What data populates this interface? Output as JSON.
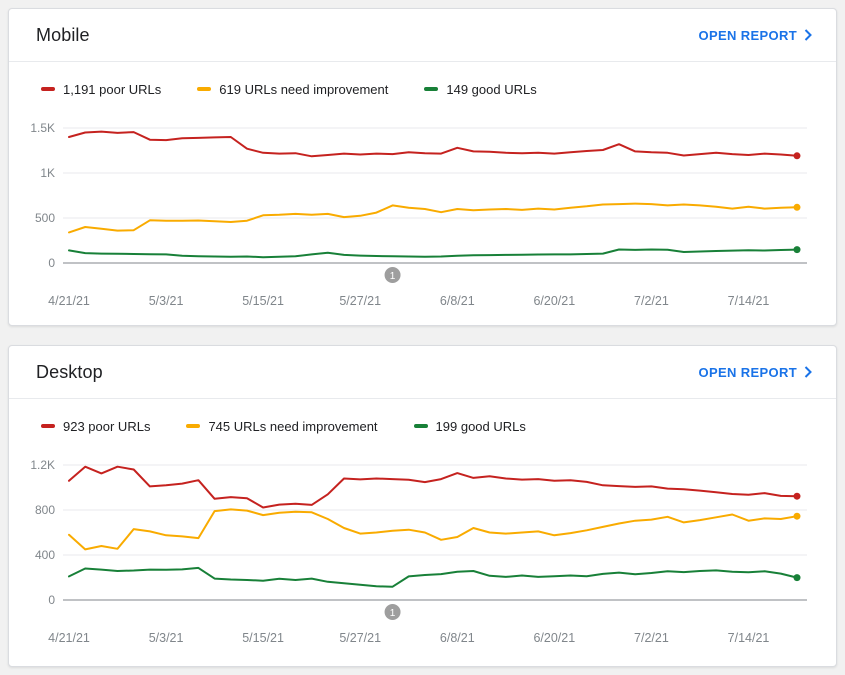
{
  "page": {
    "background": "#f1f1f1"
  },
  "colors": {
    "poor": "#c5221f",
    "needs_improvement": "#f9ab00",
    "good": "#188038",
    "link_blue": "#1a73e8",
    "axis_label": "#80868b",
    "gridline": "#e8eaed",
    "zero_line": "#80868b",
    "annotation_gray": "#9e9e9e"
  },
  "cards": [
    {
      "title": "Mobile",
      "open_report_label": "OPEN REPORT",
      "open_report_icon": "chevron-right-icon",
      "legend": [
        {
          "label": "1,191 poor URLs",
          "color": "#c5221f"
        },
        {
          "label": "619 URLs need improvement",
          "color": "#f9ab00"
        },
        {
          "label": "149 good URLs",
          "color": "#188038"
        }
      ]
    },
    {
      "title": "Desktop",
      "open_report_label": "OPEN REPORT",
      "open_report_icon": "chevron-right-icon",
      "legend": [
        {
          "label": "923 poor URLs",
          "color": "#c5221f"
        },
        {
          "label": "745 URLs need improvement",
          "color": "#f9ab00"
        },
        {
          "label": "199 good URLs",
          "color": "#188038"
        }
      ]
    }
  ],
  "chart_data": [
    {
      "type": "line",
      "title": "Mobile URL status over time",
      "x_unit": "date",
      "x_start": "4/21/21",
      "x_step_days": 2,
      "x_tick_labels": [
        "4/21/21",
        "5/3/21",
        "5/15/21",
        "5/27/21",
        "6/8/21",
        "6/20/21",
        "7/2/21",
        "7/14/21"
      ],
      "x_tick_every_n_points": 6,
      "y_ticks": [
        "0",
        "500",
        "1K",
        "1.5K"
      ],
      "y_max": 1500,
      "grid": "horizontal",
      "legend_position": "top",
      "annotation": {
        "label": "1",
        "x_index": 20
      },
      "series": [
        {
          "name": "poor URLs",
          "current": 1191,
          "color": "#c5221f",
          "values": [
            1400,
            1450,
            1460,
            1445,
            1455,
            1370,
            1365,
            1385,
            1390,
            1395,
            1400,
            1270,
            1225,
            1215,
            1220,
            1185,
            1200,
            1215,
            1205,
            1215,
            1210,
            1230,
            1220,
            1215,
            1280,
            1240,
            1235,
            1225,
            1220,
            1225,
            1215,
            1230,
            1245,
            1255,
            1320,
            1240,
            1230,
            1225,
            1195,
            1210,
            1225,
            1210,
            1200,
            1215,
            1205,
            1191
          ]
        },
        {
          "name": "URLs need improvement",
          "current": 619,
          "color": "#f9ab00",
          "values": [
            340,
            400,
            380,
            360,
            365,
            475,
            470,
            470,
            472,
            465,
            455,
            470,
            530,
            535,
            545,
            535,
            545,
            510,
            525,
            560,
            640,
            615,
            600,
            565,
            600,
            585,
            595,
            600,
            590,
            605,
            595,
            615,
            630,
            650,
            655,
            660,
            655,
            640,
            650,
            640,
            625,
            605,
            625,
            605,
            615,
            619
          ]
        },
        {
          "name": "good URLs",
          "current": 149,
          "color": "#188038",
          "values": [
            140,
            110,
            105,
            102,
            100,
            98,
            95,
            80,
            75,
            72,
            70,
            72,
            65,
            70,
            75,
            95,
            115,
            90,
            82,
            78,
            75,
            72,
            70,
            72,
            80,
            85,
            88,
            90,
            92,
            94,
            95,
            96,
            100,
            105,
            150,
            146,
            150,
            148,
            122,
            128,
            133,
            138,
            141,
            139,
            144,
            149
          ]
        }
      ]
    },
    {
      "type": "line",
      "title": "Desktop URL status over time",
      "x_unit": "date",
      "x_start": "4/21/21",
      "x_step_days": 2,
      "x_tick_labels": [
        "4/21/21",
        "5/3/21",
        "5/15/21",
        "5/27/21",
        "6/8/21",
        "6/20/21",
        "7/2/21",
        "7/14/21"
      ],
      "x_tick_every_n_points": 6,
      "y_ticks": [
        "0",
        "400",
        "800",
        "1.2K"
      ],
      "y_max": 1200,
      "grid": "horizontal",
      "legend_position": "top",
      "annotation": {
        "label": "1",
        "x_index": 20
      },
      "series": [
        {
          "name": "poor URLs",
          "current": 923,
          "color": "#c5221f",
          "values": [
            1060,
            1185,
            1125,
            1185,
            1160,
            1010,
            1020,
            1035,
            1065,
            900,
            915,
            905,
            822,
            848,
            855,
            845,
            940,
            1080,
            1072,
            1080,
            1075,
            1068,
            1048,
            1075,
            1128,
            1085,
            1100,
            1080,
            1070,
            1075,
            1060,
            1065,
            1050,
            1020,
            1012,
            1005,
            1010,
            990,
            985,
            972,
            958,
            942,
            935,
            950,
            925,
            923
          ]
        },
        {
          "name": "URLs need improvement",
          "current": 745,
          "color": "#f9ab00",
          "values": [
            580,
            450,
            480,
            455,
            630,
            610,
            575,
            565,
            550,
            790,
            805,
            795,
            755,
            775,
            785,
            780,
            720,
            640,
            590,
            600,
            615,
            625,
            600,
            535,
            560,
            640,
            600,
            590,
            600,
            610,
            575,
            595,
            620,
            650,
            680,
            705,
            715,
            740,
            690,
            710,
            735,
            760,
            705,
            725,
            720,
            745
          ]
        },
        {
          "name": "good URLs",
          "current": 199,
          "color": "#188038",
          "values": [
            210,
            280,
            270,
            258,
            262,
            270,
            268,
            272,
            285,
            190,
            182,
            178,
            172,
            188,
            178,
            190,
            162,
            148,
            135,
            122,
            118,
            210,
            222,
            230,
            252,
            258,
            215,
            205,
            218,
            205,
            212,
            218,
            212,
            232,
            244,
            228,
            240,
            255,
            248,
            258,
            263,
            252,
            246,
            255,
            235,
            199
          ]
        }
      ]
    }
  ]
}
